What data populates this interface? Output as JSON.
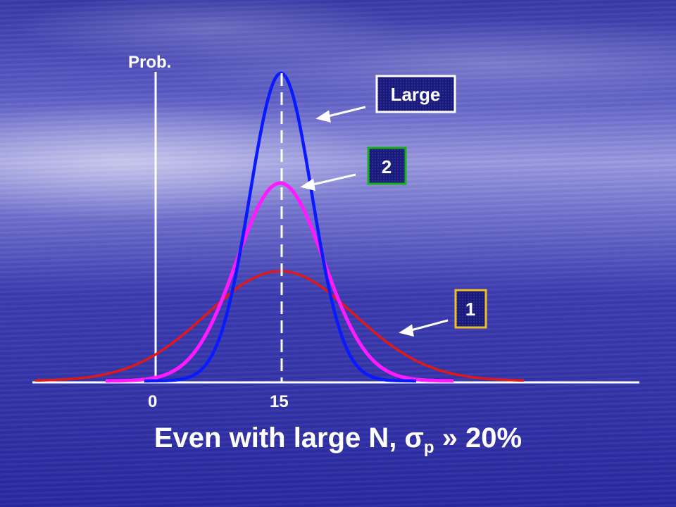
{
  "axis": {
    "y_label": "Prob.",
    "x_tick_labels": [
      "0",
      "15"
    ]
  },
  "curves": [
    {
      "label": "Large",
      "color": "#0a1aff",
      "box_border": "#ffffff"
    },
    {
      "label": "2",
      "color": "#ff1aff",
      "box_border": "#18b018"
    },
    {
      "label": "1",
      "color": "#e01818",
      "box_border": "#f0c020"
    }
  ],
  "caption": {
    "prefix": "Even with large N, ",
    "sigma": "σ",
    "subscript": "p",
    "suffix": " » 20%"
  },
  "box_fill": "#1a1a7a"
}
